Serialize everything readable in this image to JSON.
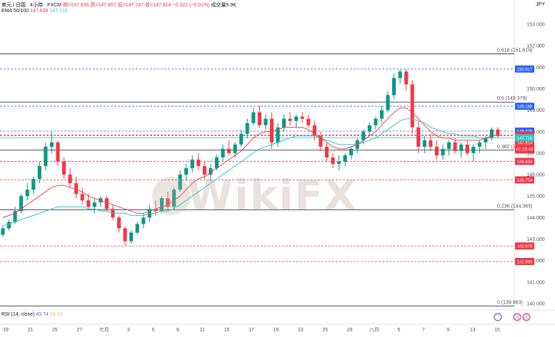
{
  "header": {
    "symbol": "美元 / 日圓 · 4小時 · FXCM",
    "open": "開=147.836",
    "high": "高=147.857",
    "low": "低=147.747",
    "close": "收=147.814",
    "change": "−0.022 (−0.01%)",
    "volume": "成交量5.9K",
    "ema_label": "EMA 50/100",
    "ema50": "147.838",
    "ema100": "147.716"
  },
  "rsi": {
    "label": "RSI (14, close)",
    "value": "49.74",
    "ma": "54.33"
  },
  "unit": "JPY",
  "watermark": "WikiFX",
  "colors": {
    "up": "#089981",
    "down": "#f23645",
    "ema50": "#e8434d",
    "ema100": "#2ec6c6",
    "fib": "#131722",
    "level": "#e04040",
    "resist": "#2962ff"
  },
  "chart_data": {
    "type": "candlestick",
    "title": "美元 / 日圓 · 4小時 · FXCM",
    "ylim": [
      139.8,
      153.4
    ],
    "y_ticks": [
      "153.000",
      "152.000",
      "151.000",
      "150.000",
      "149.000",
      "148.000",
      "147.000",
      "146.000",
      "145.000",
      "144.000",
      "143.000",
      "142.000",
      "141.000",
      "140.000",
      "139.000"
    ],
    "x_ticks": [
      "19",
      "21",
      "25",
      "27",
      "七月",
      "3",
      "5",
      "9",
      "11",
      "15",
      "17",
      "19",
      "23",
      "25",
      "29",
      "八月",
      "5",
      "7",
      "9",
      "13",
      "15"
    ],
    "fib_levels": [
      {
        "label": "0.618 (151.619)",
        "value": 151.619
      },
      {
        "label": "0.5 (149.379)",
        "value": 149.379
      },
      {
        "label": "0.382 (147.138)",
        "value": 147.138
      },
      {
        "label": "0.236 (144.365)",
        "value": 144.365
      },
      {
        "label": "0 (139.883)",
        "value": 139.883
      }
    ],
    "price_tags": [
      {
        "label": "150.917",
        "value": 150.917,
        "color": "#2962ff"
      },
      {
        "label": "149.185",
        "value": 149.185,
        "color": "#2962ff"
      },
      {
        "label": "148.026",
        "value": 148.026,
        "color": "#2962ff"
      },
      {
        "label": "147.838",
        "value": 147.838,
        "color": "#f23645"
      },
      {
        "label": "USDJPY",
        "value": 147.814,
        "color": "#f23645",
        "extra": "147.814",
        "countdown": "01:23:49"
      },
      {
        "label": "147.716",
        "value": 147.716,
        "color": "#2ec6c6"
      },
      {
        "label": "146.618",
        "value": 146.618,
        "color": "#f23645"
      },
      {
        "label": "145.754",
        "value": 145.754,
        "color": "#f23645"
      },
      {
        "label": "142.678",
        "value": 142.678,
        "color": "#f23645"
      },
      {
        "label": "141.955",
        "value": 141.955,
        "color": "#f23645"
      }
    ],
    "candles": [
      [
        143.2,
        143.6,
        143.1,
        143.5
      ],
      [
        143.5,
        143.9,
        143.4,
        143.8
      ],
      [
        143.8,
        144.5,
        143.7,
        144.3
      ],
      [
        144.3,
        145.1,
        144.2,
        145.0
      ],
      [
        145.0,
        145.6,
        144.8,
        145.3
      ],
      [
        145.3,
        145.9,
        145.1,
        145.8
      ],
      [
        145.8,
        146.6,
        145.6,
        146.4
      ],
      [
        146.4,
        147.5,
        146.2,
        147.3
      ],
      [
        147.3,
        148.0,
        147.0,
        147.5
      ],
      [
        147.5,
        147.6,
        146.4,
        146.6
      ],
      [
        146.6,
        146.8,
        145.8,
        146.0
      ],
      [
        146.0,
        146.3,
        145.4,
        145.6
      ],
      [
        145.6,
        145.9,
        144.9,
        145.1
      ],
      [
        145.1,
        145.4,
        144.6,
        144.8
      ],
      [
        144.8,
        145.1,
        144.4,
        144.5
      ],
      [
        144.5,
        144.9,
        144.2,
        144.7
      ],
      [
        144.7,
        145.0,
        144.5,
        144.9
      ],
      [
        144.9,
        145.0,
        144.3,
        144.4
      ],
      [
        144.4,
        144.6,
        143.9,
        144.0
      ],
      [
        144.0,
        144.1,
        143.3,
        143.5
      ],
      [
        143.5,
        143.6,
        142.7,
        142.9
      ],
      [
        142.9,
        143.4,
        142.8,
        143.3
      ],
      [
        143.3,
        143.8,
        143.2,
        143.7
      ],
      [
        143.7,
        144.2,
        143.5,
        144.0
      ],
      [
        144.0,
        144.6,
        143.8,
        144.4
      ],
      [
        144.4,
        144.8,
        144.1,
        144.3
      ],
      [
        144.3,
        145.0,
        144.2,
        144.9
      ],
      [
        144.9,
        145.2,
        144.3,
        144.5
      ],
      [
        144.5,
        145.4,
        144.4,
        145.3
      ],
      [
        145.3,
        146.2,
        145.2,
        146.0
      ],
      [
        146.0,
        146.5,
        145.7,
        146.3
      ],
      [
        146.3,
        146.9,
        146.1,
        146.7
      ],
      [
        146.7,
        147.0,
        146.2,
        146.4
      ],
      [
        146.4,
        146.6,
        145.8,
        146.0
      ],
      [
        146.0,
        146.5,
        145.7,
        146.3
      ],
      [
        146.3,
        146.9,
        146.2,
        146.8
      ],
      [
        146.8,
        147.4,
        146.6,
        147.2
      ],
      [
        147.2,
        147.6,
        146.9,
        147.0
      ],
      [
        147.0,
        147.5,
        146.8,
        147.4
      ],
      [
        147.4,
        148.1,
        147.3,
        147.9
      ],
      [
        147.9,
        148.6,
        147.7,
        148.4
      ],
      [
        148.4,
        149.1,
        148.3,
        148.9
      ],
      [
        148.9,
        149.2,
        148.2,
        148.3
      ],
      [
        148.3,
        148.8,
        148.1,
        148.6
      ],
      [
        148.6,
        148.9,
        147.2,
        147.5
      ],
      [
        147.5,
        148.4,
        147.3,
        148.2
      ],
      [
        148.2,
        148.8,
        148.0,
        148.6
      ],
      [
        148.6,
        148.9,
        148.3,
        148.5
      ],
      [
        148.5,
        148.8,
        148.2,
        148.7
      ],
      [
        148.7,
        148.9,
        148.4,
        148.6
      ],
      [
        148.6,
        148.8,
        148.2,
        148.3
      ],
      [
        148.3,
        148.5,
        147.6,
        147.8
      ],
      [
        147.8,
        148.0,
        147.1,
        147.3
      ],
      [
        147.3,
        147.5,
        146.6,
        146.8
      ],
      [
        146.8,
        147.0,
        146.3,
        146.5
      ],
      [
        146.5,
        146.9,
        146.2,
        146.6
      ],
      [
        146.6,
        147.0,
        146.4,
        146.9
      ],
      [
        146.9,
        147.3,
        146.7,
        147.2
      ],
      [
        147.2,
        147.7,
        147.0,
        147.6
      ],
      [
        147.6,
        148.1,
        147.4,
        148.0
      ],
      [
        148.0,
        148.4,
        147.8,
        148.3
      ],
      [
        148.3,
        148.7,
        148.1,
        148.6
      ],
      [
        148.6,
        149.2,
        148.4,
        149.0
      ],
      [
        149.0,
        149.9,
        148.9,
        149.7
      ],
      [
        149.7,
        150.7,
        149.5,
        150.5
      ],
      [
        150.5,
        150.9,
        150.2,
        150.8
      ],
      [
        150.8,
        150.9,
        149.9,
        150.2
      ],
      [
        150.2,
        150.4,
        147.9,
        148.2
      ],
      [
        148.2,
        148.5,
        147.0,
        147.3
      ],
      [
        147.3,
        147.8,
        147.0,
        147.6
      ],
      [
        147.6,
        147.9,
        147.1,
        147.3
      ],
      [
        147.3,
        147.6,
        146.7,
        146.9
      ],
      [
        146.9,
        147.4,
        146.7,
        147.2
      ],
      [
        147.2,
        147.6,
        146.9,
        147.5
      ],
      [
        147.5,
        147.7,
        147.0,
        147.1
      ],
      [
        147.1,
        147.5,
        146.8,
        147.4
      ],
      [
        147.4,
        147.6,
        146.9,
        147.0
      ],
      [
        147.0,
        147.4,
        146.6,
        147.3
      ],
      [
        147.3,
        147.6,
        147.0,
        147.5
      ],
      [
        147.5,
        147.8,
        147.2,
        147.7
      ],
      [
        147.7,
        148.2,
        147.6,
        148.1
      ],
      [
        148.1,
        148.2,
        147.7,
        147.8
      ]
    ],
    "ema50": [
      144.0,
      144.1,
      144.2,
      144.4,
      144.6,
      144.8,
      145.0,
      145.2,
      145.4,
      145.5,
      145.5,
      145.4,
      145.3,
      145.2,
      145.0,
      144.9,
      144.8,
      144.7,
      144.6,
      144.5,
      144.4,
      144.3,
      144.2,
      144.2,
      144.3,
      144.4,
      144.5,
      144.6,
      144.8,
      145.0,
      145.3,
      145.6,
      145.8,
      145.9,
      146.1,
      146.3,
      146.5,
      146.7,
      146.9,
      147.1,
      147.4,
      147.7,
      147.9,
      148.0,
      148.0,
      148.1,
      148.2,
      148.2,
      148.2,
      148.2,
      148.1,
      147.9,
      147.7,
      147.5,
      147.3,
      147.2,
      147.2,
      147.3,
      147.4,
      147.6,
      147.8,
      148.0,
      148.3,
      148.6,
      148.9,
      149.1,
      149.1,
      148.9,
      148.6,
      148.3,
      148.0,
      147.8,
      147.7,
      147.7,
      147.6,
      147.6,
      147.6,
      147.6,
      147.6,
      147.7,
      147.8,
      147.84
    ],
    "ema100": [
      143.6,
      143.7,
      143.8,
      143.9,
      144.0,
      144.1,
      144.2,
      144.3,
      144.4,
      144.5,
      144.5,
      144.5,
      144.5,
      144.5,
      144.4,
      144.4,
      144.3,
      144.3,
      144.2,
      144.2,
      144.2,
      144.1,
      144.1,
      144.1,
      144.2,
      144.2,
      144.3,
      144.3,
      144.4,
      144.6,
      144.8,
      145.0,
      145.2,
      145.4,
      145.6,
      145.8,
      146.0,
      146.2,
      146.4,
      146.6,
      146.8,
      147.0,
      147.2,
      147.3,
      147.4,
      147.5,
      147.6,
      147.7,
      147.8,
      147.8,
      147.8,
      147.8,
      147.7,
      147.6,
      147.5,
      147.4,
      147.4,
      147.4,
      147.4,
      147.5,
      147.6,
      147.7,
      147.9,
      148.1,
      148.3,
      148.5,
      148.6,
      148.6,
      148.5,
      148.4,
      148.2,
      148.1,
      148.0,
      147.9,
      147.9,
      147.8,
      147.8,
      147.8,
      147.7,
      147.7,
      147.7,
      147.72
    ]
  }
}
